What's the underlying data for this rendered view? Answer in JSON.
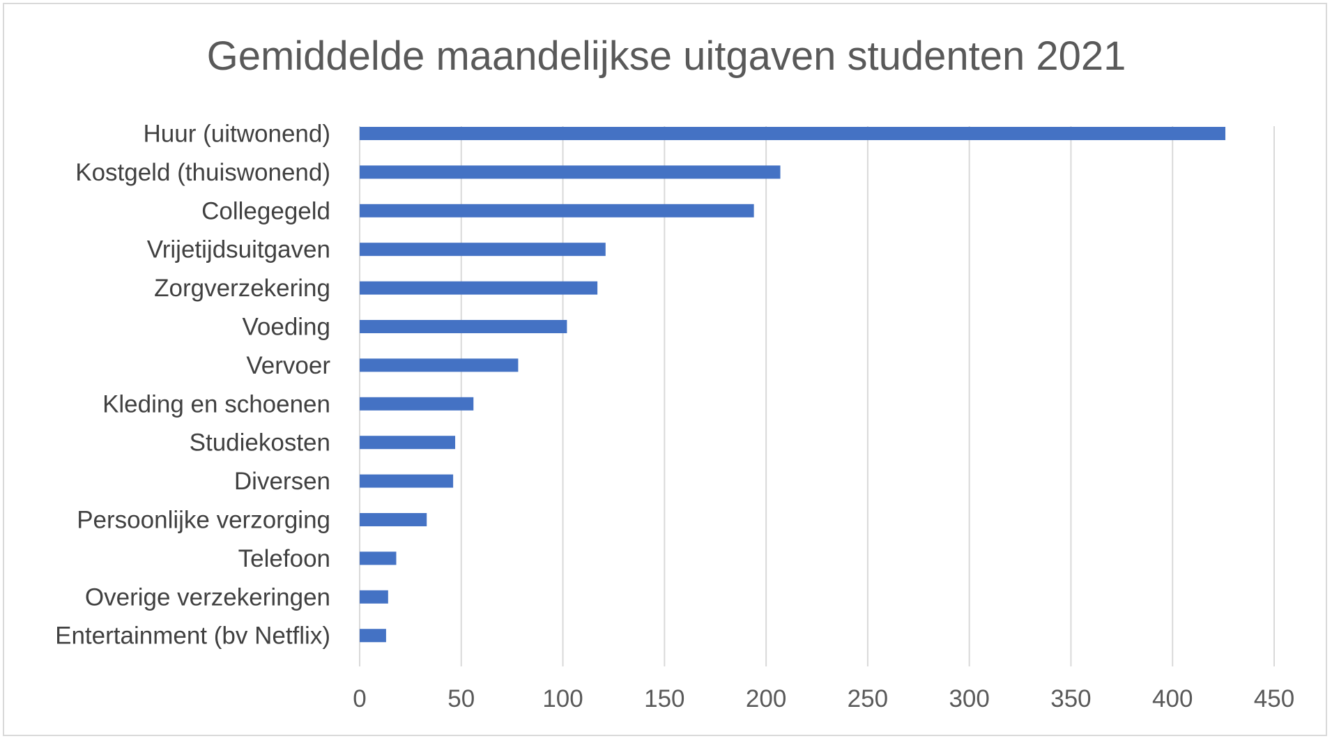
{
  "chart_data": {
    "type": "bar",
    "orientation": "horizontal",
    "title": "Gemiddelde maandelijkse uitgaven studenten 2021",
    "xlabel": "",
    "ylabel": "",
    "categories": [
      "Huur (uitwonend)",
      "Kostgeld (thuiswonend)",
      "Collegegeld",
      "Vrijetijdsuitgaven",
      "Zorgverzekering",
      "Voeding",
      "Vervoer",
      "Kleding en schoenen",
      "Studiekosten",
      "Diversen",
      "Persoonlijke verzorging",
      "Telefoon",
      "Overige verzekeringen",
      "Entertainment (bv Netflix)"
    ],
    "values": [
      426,
      207,
      194,
      121,
      117,
      102,
      78,
      56,
      47,
      46,
      33,
      18,
      14,
      13
    ],
    "xlim": [
      0,
      450
    ],
    "xticks": [
      "0",
      "50",
      "100",
      "150",
      "200",
      "250",
      "300",
      "350",
      "400",
      "450"
    ],
    "grid": "vertical",
    "legend": "none",
    "bar_color": "#4472c4"
  }
}
